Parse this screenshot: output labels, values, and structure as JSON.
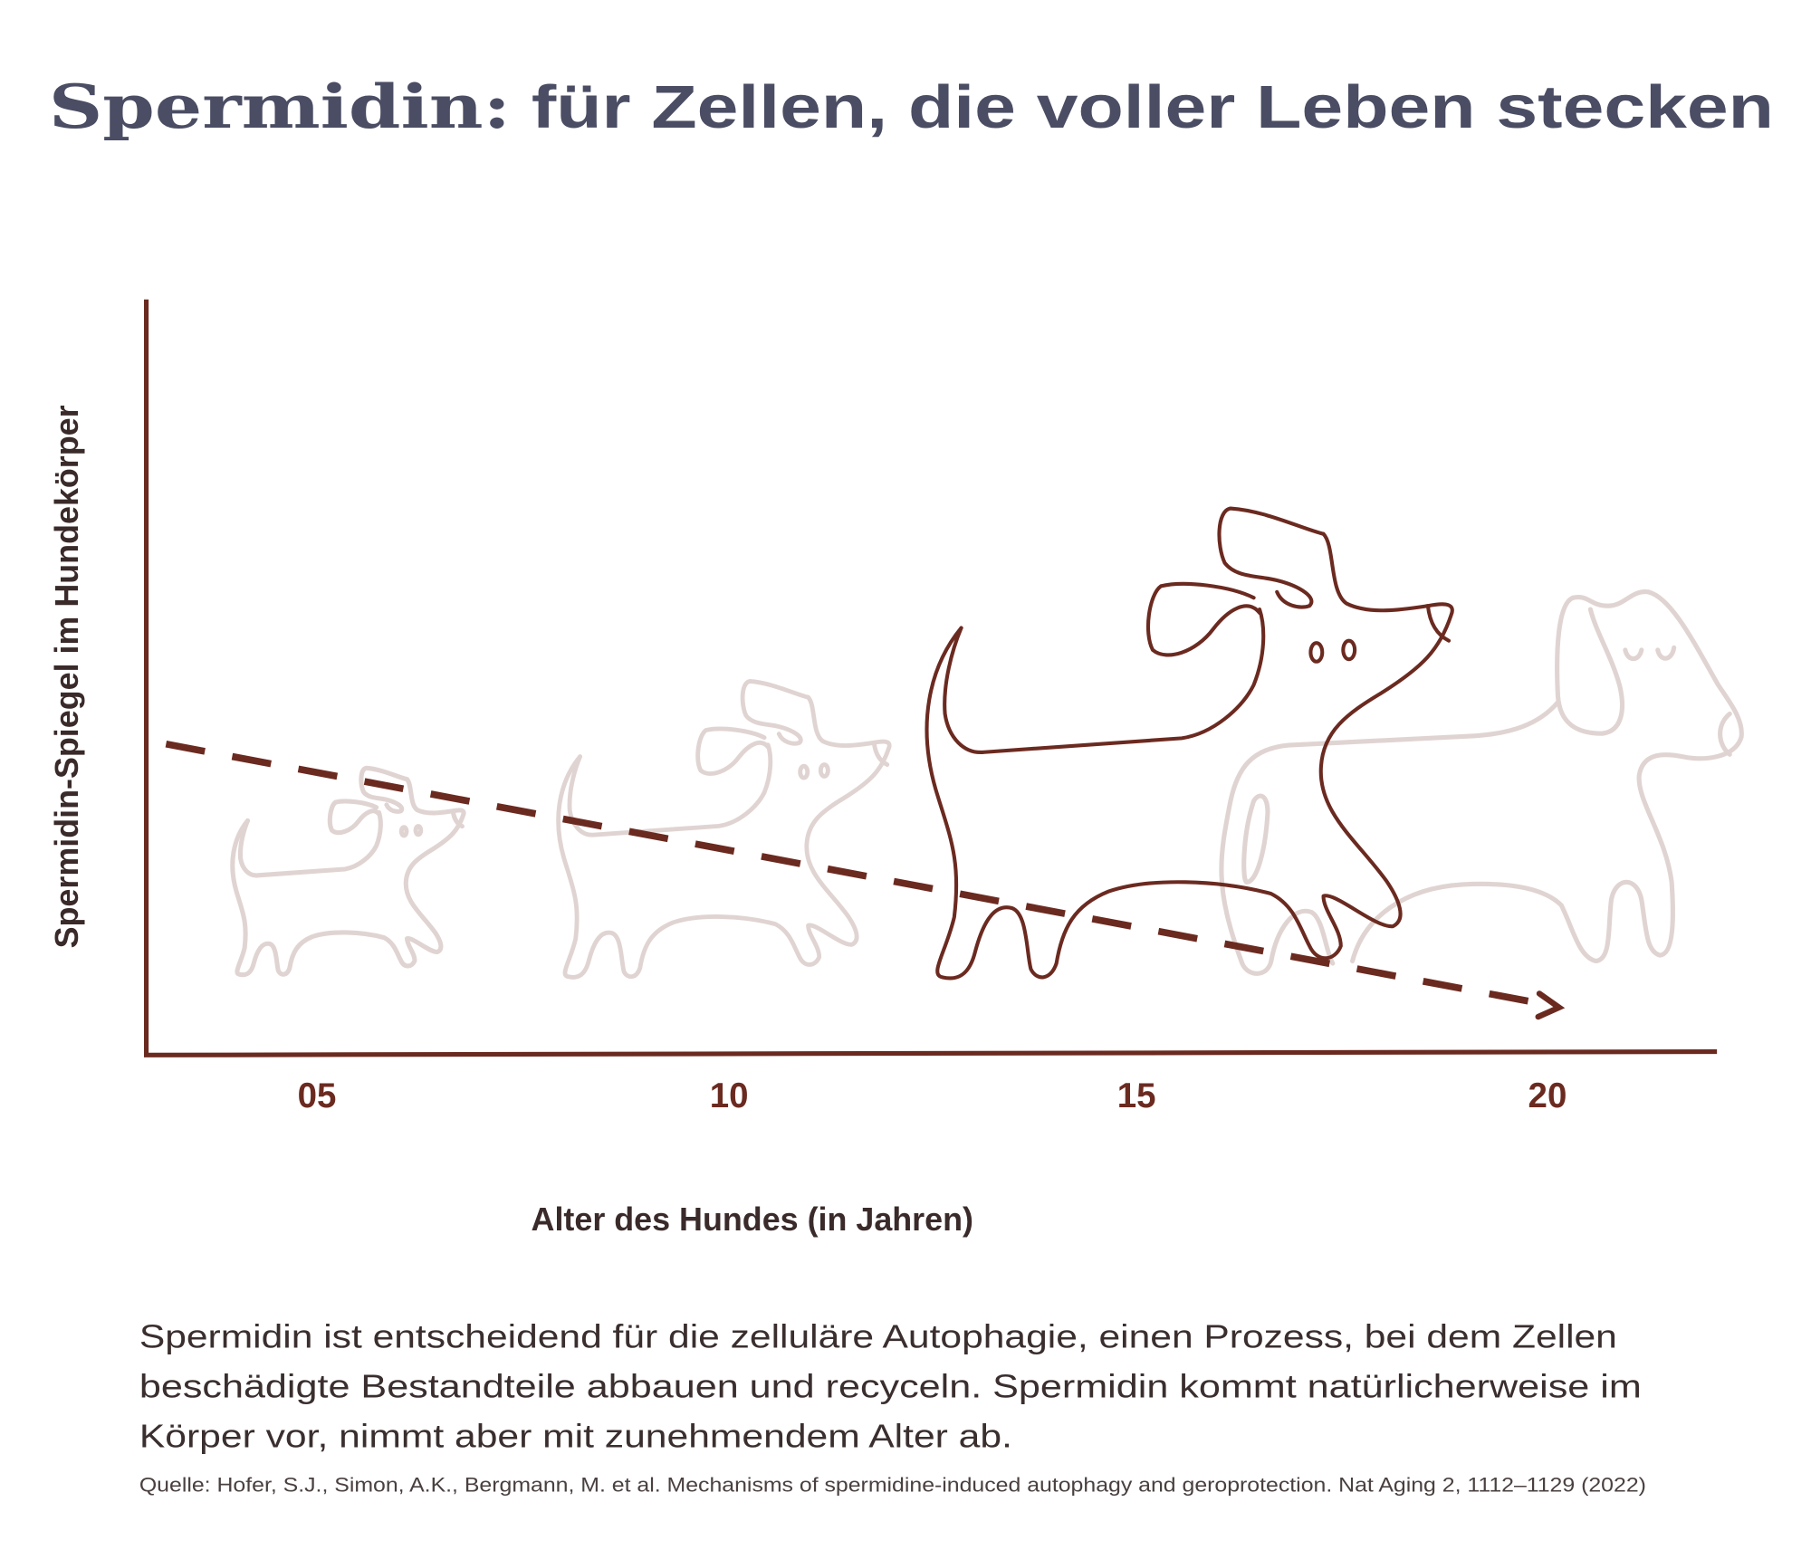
{
  "title": {
    "part1": "Spermidin:",
    "part2": " für Zellen, die voller Leben stecken"
  },
  "colors": {
    "title": "#4a4d63",
    "accent": "#6b2a20",
    "faded_dog": "#e0d4d2",
    "text": "#3a2e2e"
  },
  "chart_data": {
    "type": "line",
    "xlabel": "Alter des Hundes (in Jahren)",
    "ylabel": "Spermidin-Spiegel im Hundekörper",
    "x_ticks": [
      5,
      10,
      15,
      20
    ],
    "x_tick_labels": [
      "05",
      "10",
      "15",
      "20"
    ],
    "y_ticks": [],
    "trend": "decreasing",
    "line_style": "dashed-arrow",
    "grid": false,
    "illustrations": [
      "dog-puppy",
      "dog-young",
      "dog-adult",
      "dog-senior"
    ]
  },
  "description": {
    "lines": [
      "Spermidin ist entscheidend für die zelluläre Autophagie, einen Prozess, bei dem Zellen",
      "beschädigte Bestandteile abbauen und recyceln. Spermidin kommt natürlicherweise im",
      "Körper vor, nimmt aber mit zunehmendem Alter ab."
    ],
    "source": "Quelle: Hofer, S.J., Simon, A.K., Bergmann, M. et al. Mechanisms of spermidine-induced autophagy and geroprotection. Nat Aging 2, 1112–1129 (2022)"
  }
}
